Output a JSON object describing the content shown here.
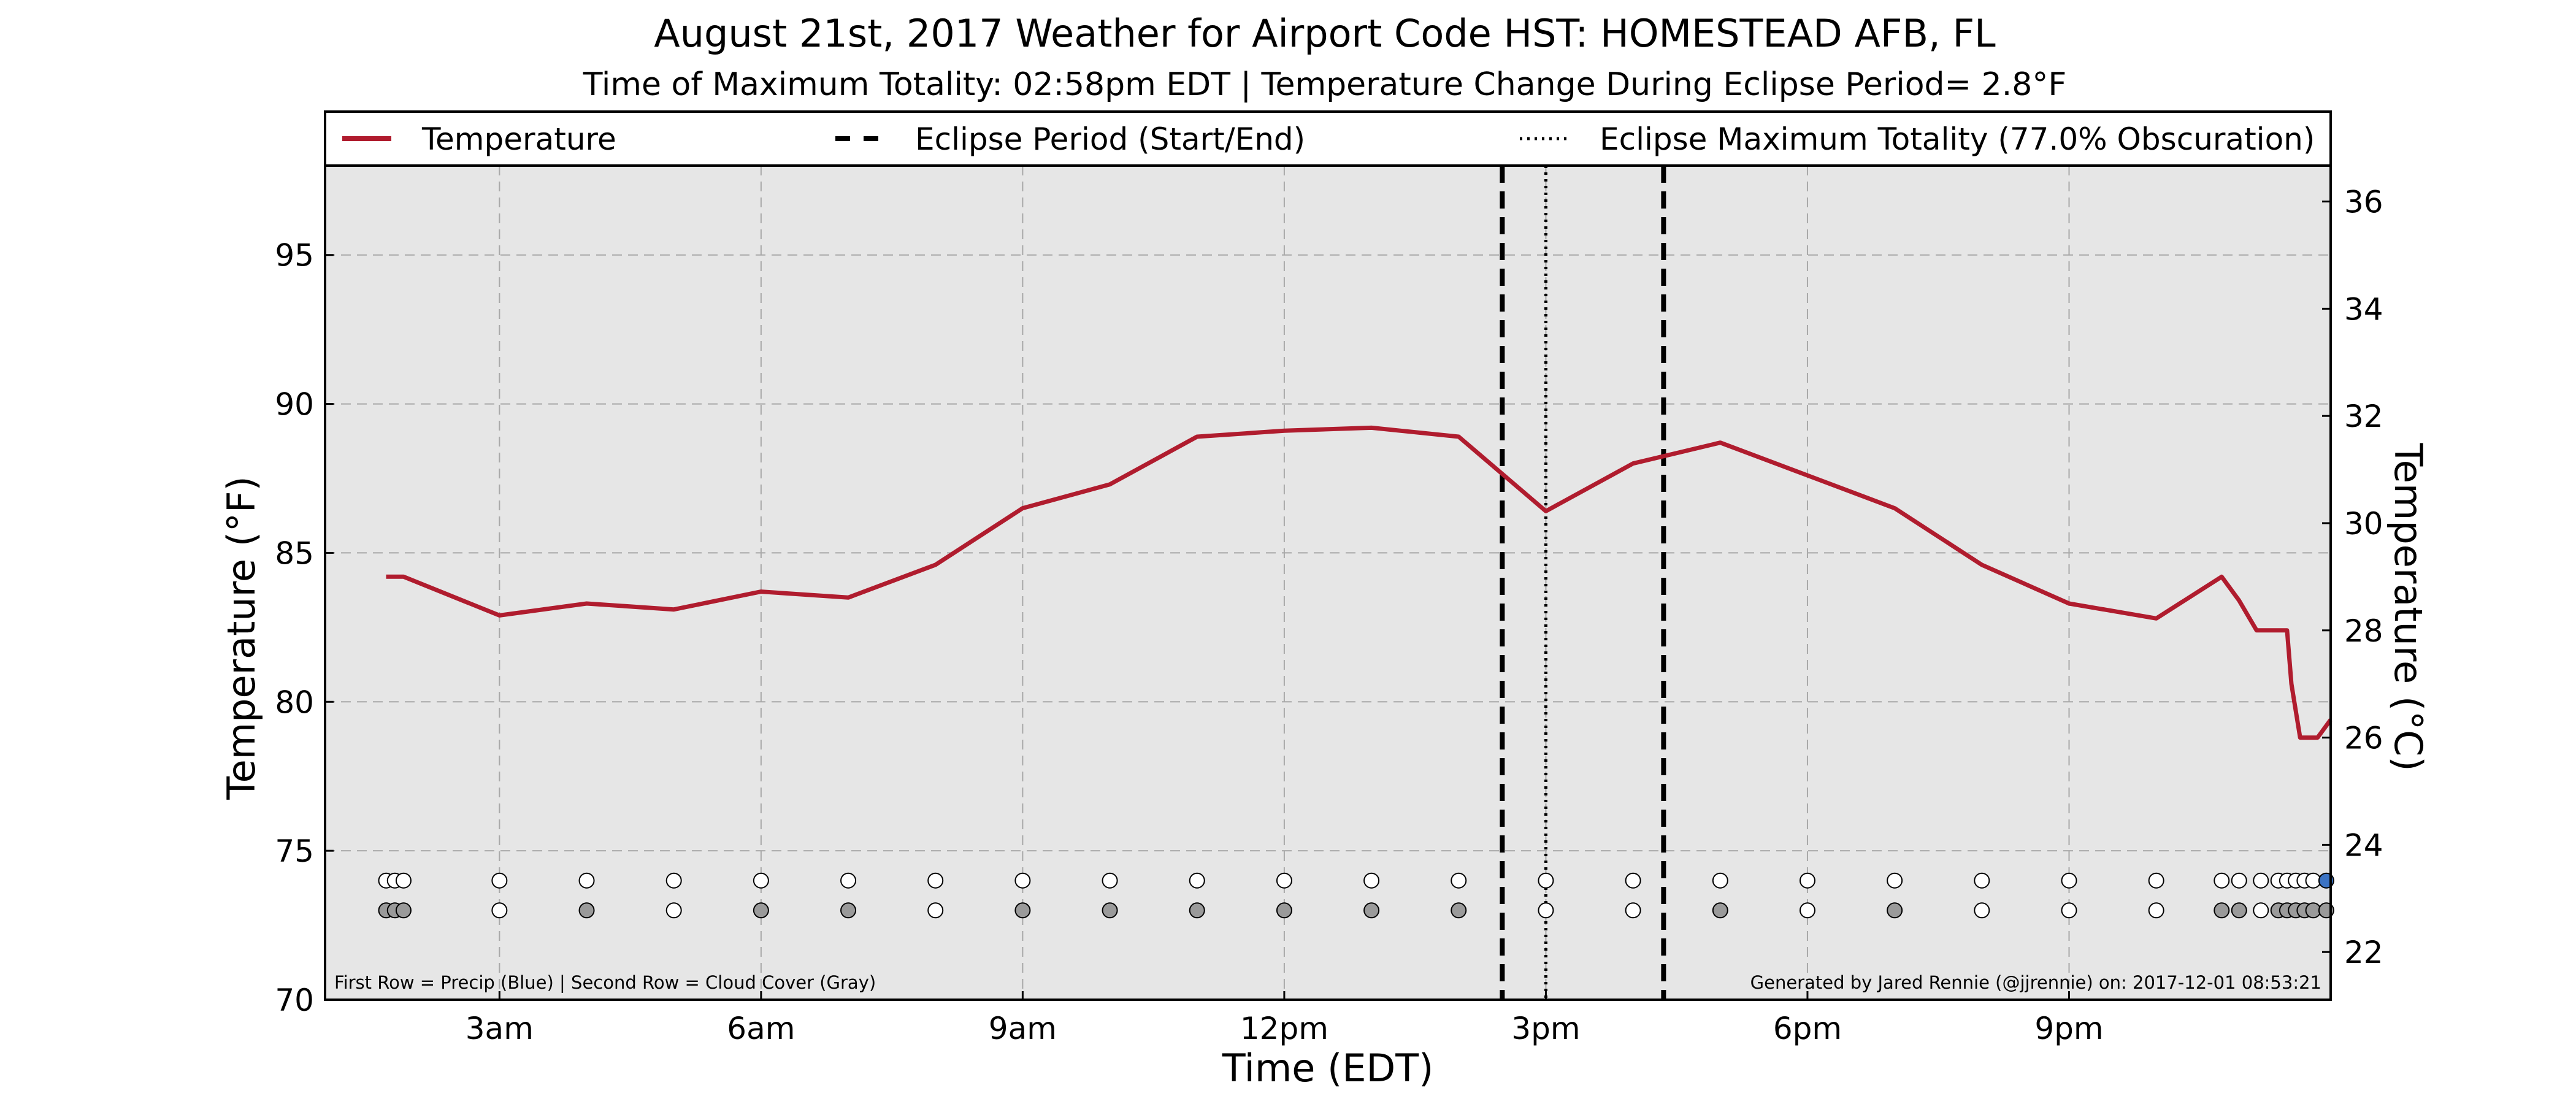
{
  "title": "August 21st, 2017 Weather for Airport Code HST: HOMESTEAD AFB, FL",
  "subtitle": "Time of Maximum Totality: 02:58pm EDT | Temperature Change During Eclipse Period= 2.8°F",
  "footnote_left": "First Row = Precip (Blue) | Second Row = Cloud Cover (Gray)",
  "footnote_right": "Generated by Jared Rennie (@jjrennie) on: 2017-12-01 08:53:21",
  "colors": {
    "temperature_line": "#b01c2e",
    "plot_background": "#e6e6e6",
    "precip": "#3b73c4",
    "cloud_cover": "#9a9a9a",
    "clear": "#ffffff"
  },
  "chart_data": {
    "type": "line",
    "xlabel": "Time (EDT)",
    "ylabel": "Temperature (°F)",
    "ylabel_right": "Temperature (°C)",
    "xlim": [
      1,
      24
    ],
    "ylim": [
      70,
      98
    ],
    "ylim_right": [
      21.11,
      36.67
    ],
    "grid": true,
    "x_ticks": [
      {
        "value": 3,
        "label": "3am"
      },
      {
        "value": 6,
        "label": "6am"
      },
      {
        "value": 9,
        "label": "9am"
      },
      {
        "value": 12,
        "label": "12pm"
      },
      {
        "value": 15,
        "label": "3pm"
      },
      {
        "value": 18,
        "label": "6pm"
      },
      {
        "value": 21,
        "label": "9pm"
      }
    ],
    "y_ticks": [
      70,
      75,
      80,
      85,
      90,
      95
    ],
    "y_ticks_right": [
      22,
      24,
      26,
      28,
      30,
      32,
      34,
      36
    ],
    "legend": {
      "placement": "top",
      "entries": [
        {
          "label": "Temperature",
          "style": "solid"
        },
        {
          "label": "Eclipse Period (Start/End)",
          "style": "dashed"
        },
        {
          "label": "Eclipse Maximum Totality (77.0% Obscuration)",
          "style": "dotted"
        }
      ]
    },
    "eclipse": {
      "start": 14.5,
      "max": 15.0,
      "end": 16.35
    },
    "series": [
      {
        "name": "Temperature",
        "x": [
          1.7,
          1.9,
          3,
          4,
          5,
          6,
          7,
          8,
          9,
          10,
          11,
          12,
          13,
          14,
          15,
          16,
          17,
          18,
          19,
          20,
          21,
          22,
          22.75,
          22.95,
          23.15,
          23.5,
          23.55,
          23.65,
          23.85,
          24
        ],
        "y": [
          84.2,
          84.2,
          82.9,
          83.3,
          83.1,
          83.7,
          83.5,
          84.6,
          86.5,
          87.3,
          88.9,
          89.1,
          89.2,
          88.9,
          86.4,
          88.0,
          88.7,
          87.6,
          86.5,
          84.6,
          83.3,
          82.8,
          84.2,
          83.4,
          82.4,
          82.4,
          80.6,
          78.8,
          78.8,
          79.4
        ]
      }
    ],
    "observations": [
      {
        "x": 1.7,
        "precip": false,
        "cloud": "gray"
      },
      {
        "x": 1.8,
        "precip": false,
        "cloud": "gray"
      },
      {
        "x": 1.9,
        "precip": false,
        "cloud": "gray"
      },
      {
        "x": 3,
        "precip": false,
        "cloud": "clear"
      },
      {
        "x": 4,
        "precip": false,
        "cloud": "gray"
      },
      {
        "x": 5,
        "precip": false,
        "cloud": "clear"
      },
      {
        "x": 6,
        "precip": false,
        "cloud": "gray"
      },
      {
        "x": 7,
        "precip": false,
        "cloud": "gray"
      },
      {
        "x": 8,
        "precip": false,
        "cloud": "clear"
      },
      {
        "x": 9,
        "precip": false,
        "cloud": "gray"
      },
      {
        "x": 10,
        "precip": false,
        "cloud": "gray"
      },
      {
        "x": 11,
        "precip": false,
        "cloud": "gray"
      },
      {
        "x": 12,
        "precip": false,
        "cloud": "gray"
      },
      {
        "x": 13,
        "precip": false,
        "cloud": "gray"
      },
      {
        "x": 14,
        "precip": false,
        "cloud": "gray"
      },
      {
        "x": 15,
        "precip": false,
        "cloud": "clear"
      },
      {
        "x": 16,
        "precip": false,
        "cloud": "clear"
      },
      {
        "x": 17,
        "precip": false,
        "cloud": "gray"
      },
      {
        "x": 18,
        "precip": false,
        "cloud": "clear"
      },
      {
        "x": 19,
        "precip": false,
        "cloud": "gray"
      },
      {
        "x": 20,
        "precip": false,
        "cloud": "clear"
      },
      {
        "x": 21,
        "precip": false,
        "cloud": "clear"
      },
      {
        "x": 22,
        "precip": false,
        "cloud": "clear"
      },
      {
        "x": 22.75,
        "precip": false,
        "cloud": "gray"
      },
      {
        "x": 22.95,
        "precip": false,
        "cloud": "gray"
      },
      {
        "x": 23.2,
        "precip": false,
        "cloud": "clear"
      },
      {
        "x": 23.4,
        "precip": false,
        "cloud": "gray"
      },
      {
        "x": 23.5,
        "precip": false,
        "cloud": "gray"
      },
      {
        "x": 23.6,
        "precip": false,
        "cloud": "gray"
      },
      {
        "x": 23.7,
        "precip": false,
        "cloud": "gray"
      },
      {
        "x": 23.8,
        "precip": false,
        "cloud": "gray"
      },
      {
        "x": 23.95,
        "precip": true,
        "cloud": "gray"
      }
    ]
  }
}
